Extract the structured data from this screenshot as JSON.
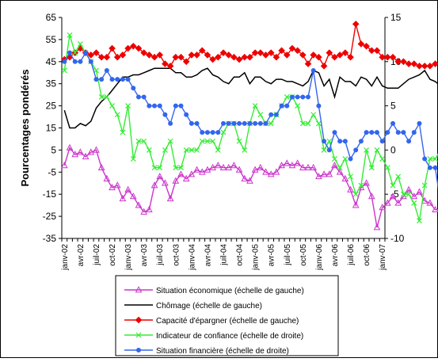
{
  "chart_data": {
    "type": "line",
    "ylabel": "Pourcentages pondérés",
    "ylim_left": [
      -35,
      65
    ],
    "yticks_left": [
      -35,
      -25,
      -15,
      -5,
      5,
      15,
      25,
      35,
      45,
      55,
      65
    ],
    "ylim_right": [
      -10,
      15
    ],
    "yticks_right": [
      -10,
      -5,
      0,
      5,
      10,
      15
    ],
    "x_start": "2002-01",
    "x_end": "2007-01",
    "xticks": [
      "janv-02",
      "avr-02",
      "juil-02",
      "oct-02",
      "janv-03",
      "avr-03",
      "juil-03",
      "oct-03",
      "janv-04",
      "avr-04",
      "juil-04",
      "oct-04",
      "janv-05",
      "avr-05",
      "juil-05",
      "oct-05",
      "janv-06",
      "avr-06",
      "juil-06",
      "oct-06",
      "janv-07"
    ],
    "grid": false,
    "legend_position": "bottom",
    "series": [
      {
        "name": "Situation économique (échelle de gauche)",
        "axis": "left",
        "color": "#cc33cc",
        "marker": "triangle",
        "values": [
          -2,
          6,
          3,
          4,
          2,
          4,
          5,
          -3,
          -8,
          -12,
          -11,
          -17,
          -13,
          -16,
          -20,
          -23,
          -22,
          -11,
          -7,
          -10,
          -17,
          -9,
          -6,
          -8,
          -6,
          -4,
          -5,
          -4,
          -3,
          -2,
          -3,
          -3,
          -2,
          -4,
          -8,
          -9,
          -4,
          -3,
          -5,
          -6,
          -5,
          -2,
          -1,
          -2,
          -1,
          -3,
          -3,
          -3,
          -7,
          -6,
          -6,
          -2,
          -5,
          -8,
          -13,
          -20,
          -12,
          -10,
          -16,
          -30,
          -21,
          -19,
          -16,
          -19,
          -16,
          -13,
          -16,
          -14,
          -18,
          -19,
          -22,
          -22,
          -15,
          -13,
          -15,
          -13,
          -9,
          -4,
          -7,
          -3,
          -3,
          -1
        ]
      },
      {
        "name": "Chômage (échelle de gauche)",
        "axis": "left",
        "color": "#000000",
        "marker": "none",
        "values": [
          23,
          15,
          15,
          17,
          16,
          18,
          24,
          27,
          29,
          32,
          35,
          38,
          38,
          39,
          39,
          40,
          41,
          42,
          42,
          42,
          42,
          40,
          40,
          38,
          38,
          39,
          41,
          42,
          39,
          38,
          36,
          35,
          38,
          38,
          40,
          35,
          38,
          38,
          36,
          35,
          37,
          37,
          36,
          36,
          35,
          34,
          36,
          41,
          40,
          34,
          37,
          29,
          38,
          36,
          36,
          34,
          38,
          37,
          34,
          38,
          34,
          33,
          33,
          33,
          35,
          37,
          38,
          39,
          41,
          37,
          36,
          34,
          34,
          33,
          32,
          32,
          31,
          29,
          26,
          25,
          26,
          26
        ]
      },
      {
        "name": "Capacité d'épargner (échelle de gauche)",
        "axis": "left",
        "color": "#ee0000",
        "marker": "diamond",
        "values": [
          46,
          47,
          49,
          51,
          49,
          48,
          49,
          47,
          47,
          51,
          47,
          48,
          51,
          52,
          51,
          49,
          48,
          47,
          48,
          44,
          43,
          47,
          47,
          45,
          48,
          48,
          50,
          48,
          46,
          47,
          49,
          48,
          47,
          46,
          47,
          47,
          49,
          49,
          48,
          49,
          47,
          50,
          48,
          51,
          50,
          48,
          44,
          48,
          47,
          43,
          49,
          47,
          48,
          49,
          47,
          62,
          53,
          52,
          50,
          50,
          47,
          47,
          47,
          45,
          45,
          44,
          44,
          43,
          43,
          43,
          44,
          44,
          42,
          43,
          44,
          44,
          44,
          44,
          44,
          45,
          48,
          49
        ]
      },
      {
        "name": "Indicateur de confiance (échelle de droite)",
        "axis": "right",
        "color": "#33ee33",
        "marker": "cross",
        "values": [
          9,
          13,
          11,
          12,
          11,
          10,
          9,
          6,
          6,
          5,
          4,
          2,
          5,
          -1,
          1,
          1,
          0,
          -2,
          -2,
          0,
          1,
          -2,
          -2,
          0,
          0,
          0,
          1,
          1,
          1,
          0,
          2,
          3,
          3,
          1,
          0,
          3,
          5,
          4,
          3,
          3,
          4,
          5,
          6,
          6,
          5,
          3,
          3,
          4,
          3,
          0,
          1,
          -1,
          -2,
          -1,
          -3,
          -5,
          -4,
          0,
          -2,
          0,
          -1,
          -2,
          -4,
          -3,
          -5,
          -5,
          -6,
          -8,
          -4,
          -1,
          -1,
          0,
          1,
          2,
          4,
          5,
          5,
          6,
          7,
          6,
          4,
          5
        ]
      },
      {
        "name": "Situation financière (échelle de droite)",
        "axis": "right",
        "color": "#3366ee",
        "marker": "circle",
        "values": [
          10,
          11,
          10,
          10,
          11,
          10,
          8,
          8,
          9,
          8,
          8,
          8,
          8,
          7,
          6,
          6,
          5,
          5,
          5,
          4,
          3,
          5,
          5,
          4,
          3,
          3,
          2,
          2,
          2,
          2,
          3,
          3,
          3,
          3,
          3,
          3,
          3,
          3,
          3,
          4,
          4,
          5,
          5,
          6,
          6,
          6,
          6,
          9,
          5,
          1,
          0,
          2,
          1,
          1,
          -1,
          0,
          1,
          2,
          2,
          2,
          1,
          2,
          3,
          2,
          2,
          1,
          2,
          3,
          -1,
          -2,
          -2,
          -6,
          -6,
          -3,
          -2,
          -2,
          -2,
          0,
          1,
          2,
          2,
          1
        ]
      }
    ]
  }
}
